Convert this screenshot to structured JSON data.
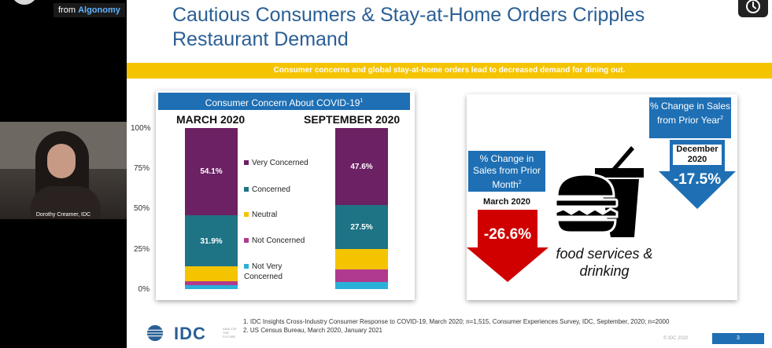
{
  "overlay": {
    "from_label": "from",
    "brand_label": "Algonomy",
    "participant_name": "Dorothy Creamer, IDC"
  },
  "slide": {
    "title": "Cautious Consumers & Stay-at-Home Orders Cripples Restaurant Demand",
    "banner": "Consumer concerns and global stay-at-home orders lead to decreased demand for dining out.",
    "left_chart": {
      "header": "Consumer Concern About COVID-19",
      "header_sup": "1",
      "colors": {
        "very_concerned": "#6b2163",
        "concerned": "#1e7385",
        "neutral": "#f5c400",
        "not_concerned": "#b03a8e",
        "not_very_concerned": "#2bb0d8"
      }
    },
    "right_panel": {
      "monthly_box": "% Change in Sales from Prior Month",
      "monthly_sup": "2",
      "monthly_period": "March 2020",
      "monthly_value": "-26.6%",
      "yearly_box": "% Change in Sales from Prior Year",
      "yearly_sup": "2",
      "yearly_period": "December 2020",
      "yearly_value": "-17.5%",
      "food_label": "food services & drinking",
      "red_arrow_color": "#d00000",
      "blue_arrow_color": "#1e6fb4"
    },
    "footnotes": [
      "1.   IDC Insights Cross-Industry Consumer Response to COVID-19, March 2020; n=1,515, Consumer Experiences Survey, IDC, September, 2020; n=2000",
      "2.   US Census Bureau, March 2020, January 2021"
    ],
    "logo_text": "IDC",
    "logo_tagline": "ANALYZE THE FUTURE",
    "copyright": "© IDC 2020",
    "page_number": "3"
  },
  "chart_data": {
    "type": "bar",
    "stacked": true,
    "title": "Consumer Concern About COVID-19",
    "categories": [
      "MARCH 2020",
      "SEPTEMBER 2020"
    ],
    "yticks": [
      "100%",
      "75%",
      "50%",
      "25%",
      "0%"
    ],
    "ylim": [
      0,
      100
    ],
    "series": [
      {
        "name": "Not Very Concerned",
        "values": [
          2.5,
          4.5
        ],
        "labels": [
          "",
          ""
        ]
      },
      {
        "name": "Not Concerned",
        "values": [
          2.5,
          7.5
        ],
        "labels": [
          "",
          ""
        ]
      },
      {
        "name": "Neutral",
        "values": [
          9,
          12.9
        ],
        "labels": [
          "",
          ""
        ]
      },
      {
        "name": "Concerned",
        "values": [
          31.9,
          27.5
        ],
        "labels": [
          "31.9%",
          "27.5%"
        ]
      },
      {
        "name": "Very Concerned",
        "values": [
          54.1,
          47.6
        ],
        "labels": [
          "54.1%",
          "47.6%"
        ]
      }
    ],
    "legend_position": "between bars"
  }
}
